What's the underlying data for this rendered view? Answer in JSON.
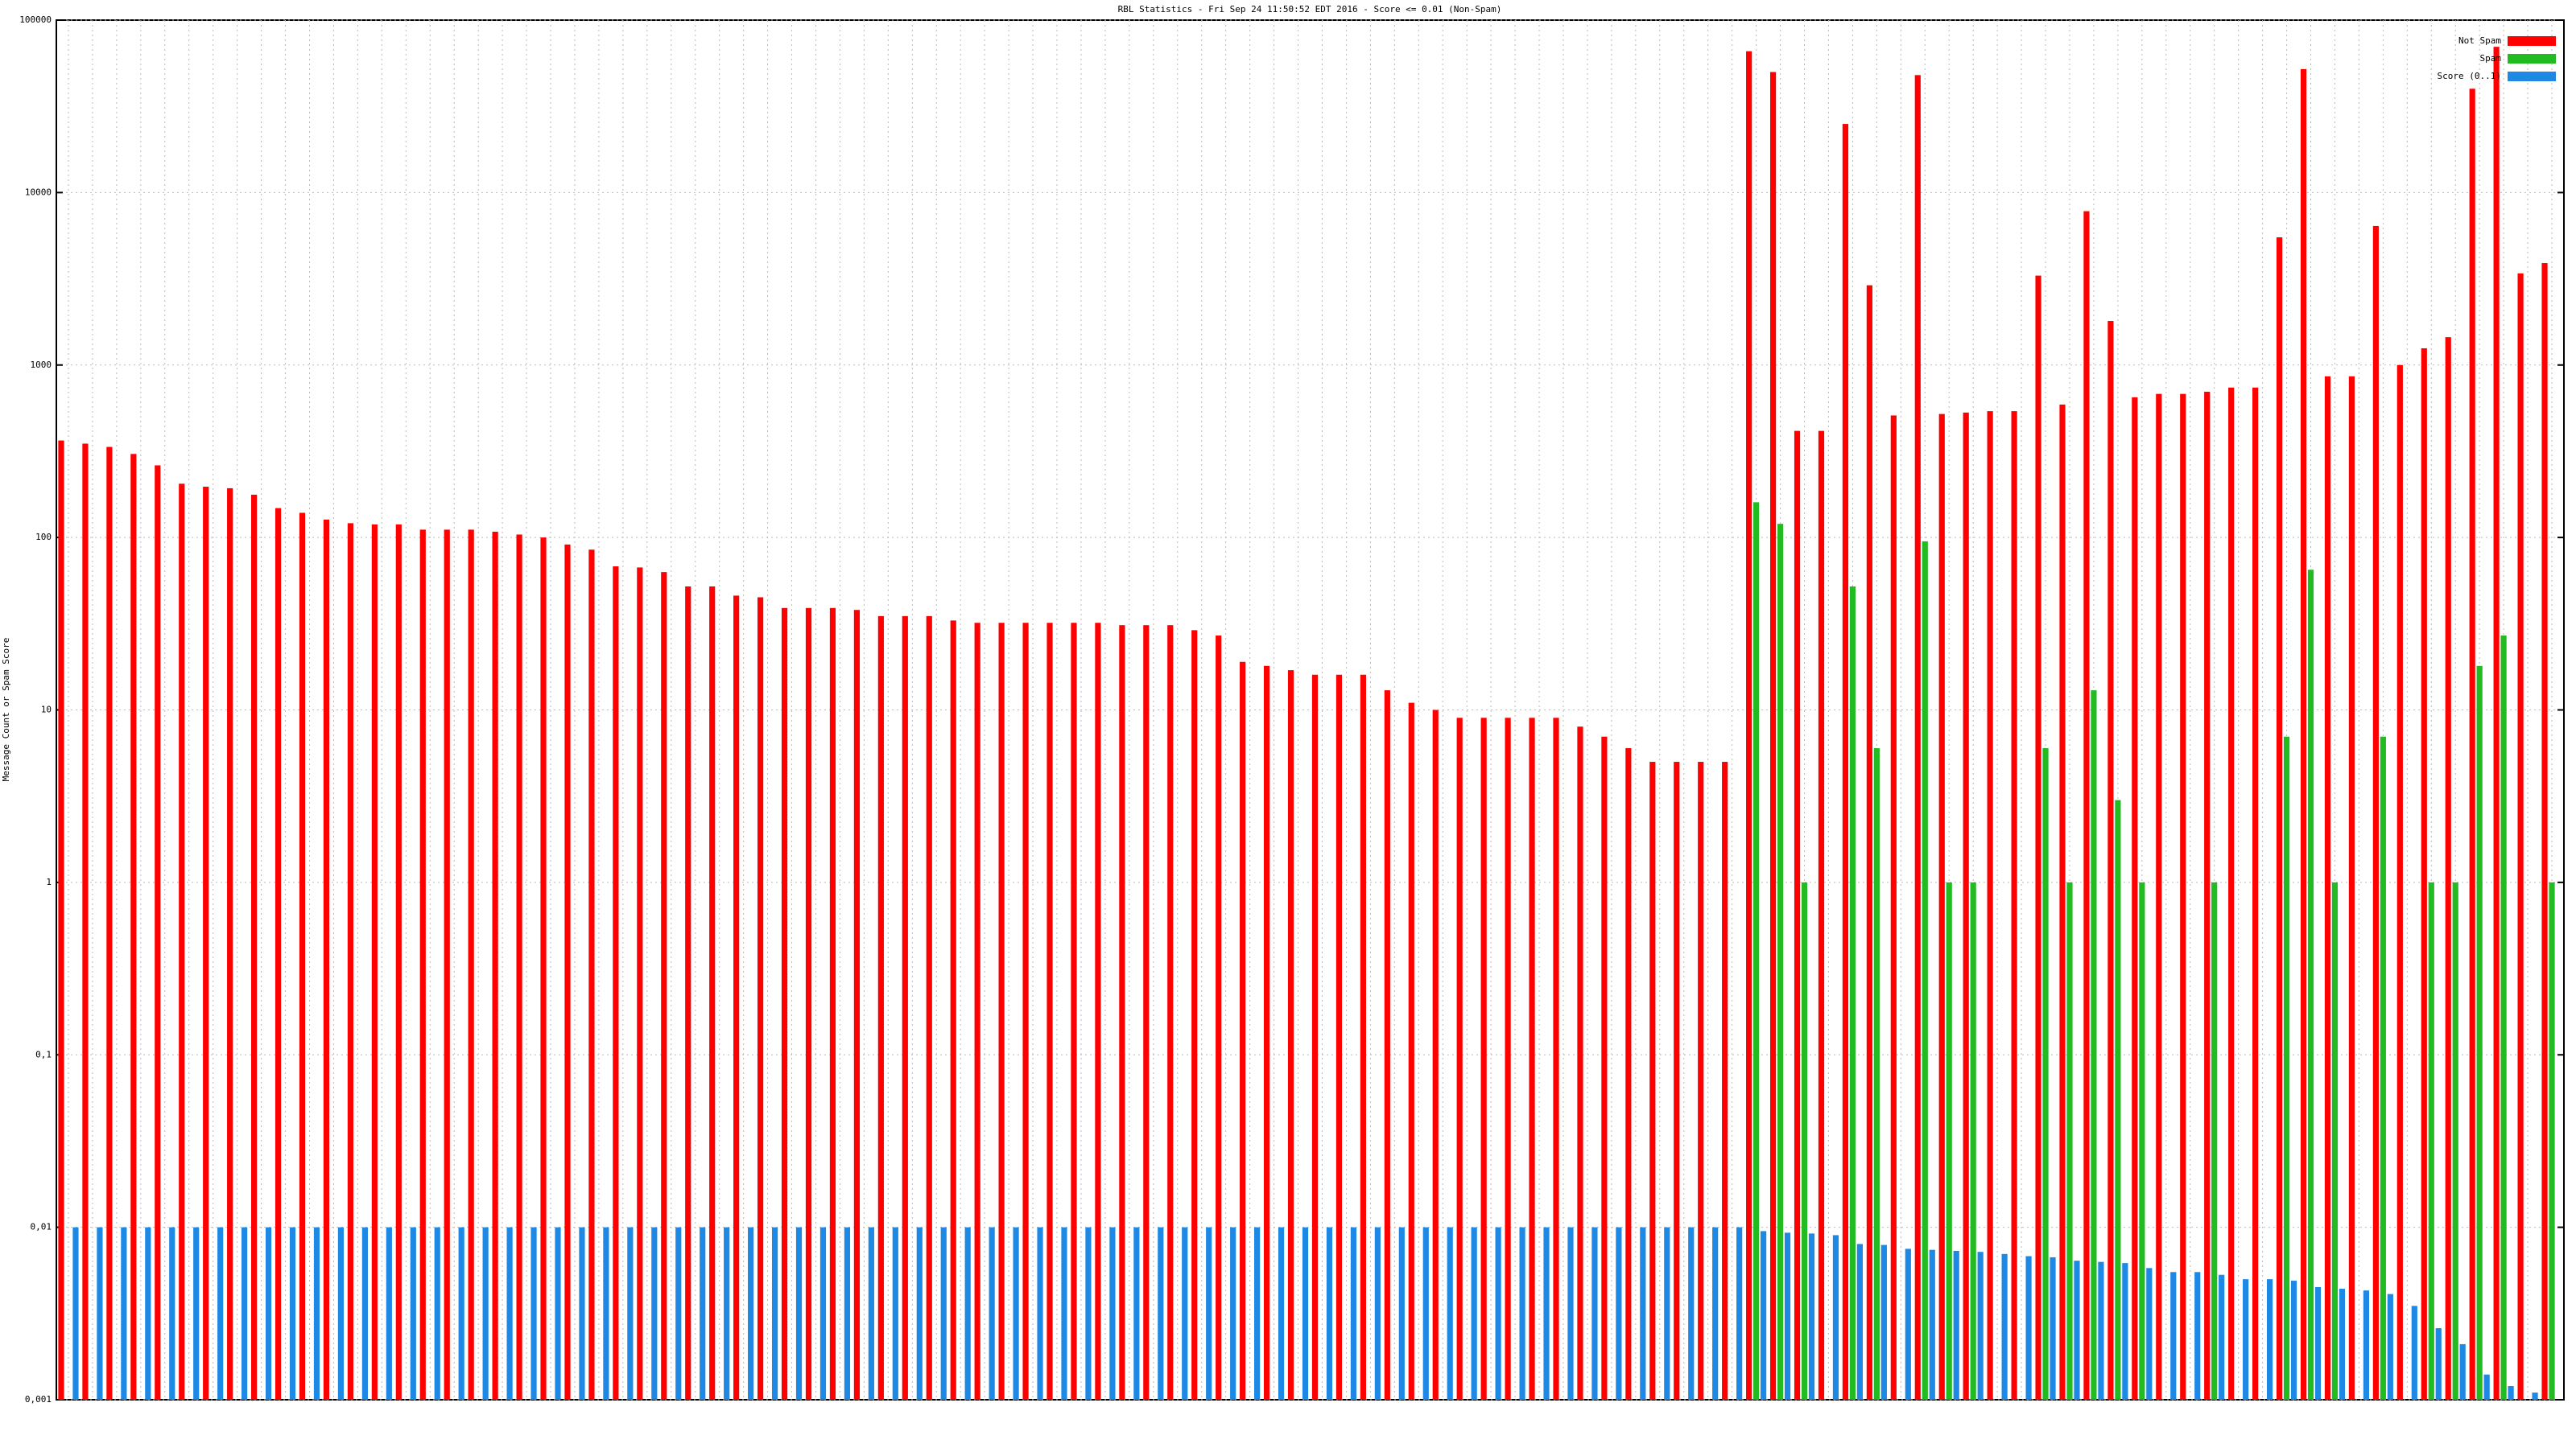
{
  "chart_data": {
    "type": "bar",
    "title": "RBL Statistics - Fri Sep 24 11:50:52 EDT 2016 - Score <= 0.01 (Non-Spam)",
    "y_label": "Message Count or Spam Score",
    "log_scale": true,
    "grid": true,
    "legend": "upper right",
    "ylim": [
      0.001,
      100000
    ],
    "yticks": [
      {
        "value": 0.001,
        "label": "0,001"
      },
      {
        "value": 0.01,
        "label": "0,01"
      },
      {
        "value": 0.1,
        "label": "0,1"
      },
      1,
      10,
      100,
      1000,
      10000,
      100000
    ],
    "categories": [
      null,
      null,
      null,
      null,
      null,
      null,
      null,
      null,
      null,
      null,
      null,
      null,
      null,
      null,
      null,
      null,
      null,
      null,
      null,
      null,
      null,
      null,
      null,
      null,
      null,
      null,
      null,
      null,
      null,
      null,
      null,
      null,
      null,
      null,
      null,
      null,
      null,
      null,
      null,
      null,
      null,
      null,
      null,
      null,
      null,
      null,
      null,
      null,
      null,
      null,
      null,
      null,
      null,
      null,
      null,
      null,
      null,
      null,
      null,
      null,
      null,
      null,
      null,
      null,
      null,
      null,
      null,
      null,
      null,
      null,
      null,
      null,
      null,
      null,
      null,
      null,
      null,
      null,
      null,
      null,
      null,
      null,
      null,
      null,
      null,
      null,
      null,
      null,
      null,
      null,
      null,
      null,
      null,
      null,
      null,
      null,
      null,
      null,
      null,
      null,
      null,
      null,
      null,
      null
    ],
    "series": [
      {
        "name": "Not Spam",
        "color": "#ff0000",
        "values": [
          365,
          350,
          335,
          305,
          262,
          205,
          197,
          193,
          177,
          148,
          139,
          127,
          121,
          119,
          119,
          111,
          111,
          111,
          108,
          104,
          100,
          91,
          85,
          68,
          67,
          63,
          52,
          52,
          46,
          45,
          39,
          39,
          39,
          38,
          35,
          35,
          35,
          33,
          32,
          32,
          32,
          32,
          32,
          32,
          31,
          31,
          31,
          29,
          27,
          19,
          18,
          17,
          16,
          16,
          16,
          13,
          11,
          10,
          9,
          9,
          9,
          9,
          9,
          8,
          7,
          6,
          5,
          5,
          5,
          5,
          66000,
          50000,
          415,
          415,
          25000,
          2900,
          510,
          48000,
          520,
          530,
          540,
          540,
          3300,
          590,
          7800,
          1800,
          650,
          680,
          680,
          700,
          740,
          740,
          5500,
          52000,
          860,
          860,
          6400,
          1000,
          1250,
          1450,
          40000,
          70000,
          3400,
          3900
        ]
      },
      {
        "name": "Spam",
        "color": "#22bb22",
        "values": [
          null,
          null,
          null,
          null,
          null,
          null,
          null,
          null,
          null,
          null,
          null,
          null,
          null,
          null,
          null,
          null,
          null,
          null,
          null,
          null,
          null,
          null,
          null,
          null,
          null,
          null,
          null,
          null,
          null,
          null,
          null,
          null,
          null,
          null,
          null,
          null,
          null,
          null,
          null,
          null,
          null,
          null,
          null,
          null,
          null,
          null,
          null,
          null,
          null,
          null,
          null,
          null,
          null,
          null,
          null,
          null,
          null,
          null,
          null,
          null,
          null,
          null,
          null,
          null,
          null,
          null,
          null,
          null,
          null,
          null,
          160,
          120,
          1,
          null,
          52,
          6,
          null,
          95,
          1,
          1,
          null,
          null,
          6,
          1,
          13,
          3,
          1,
          null,
          null,
          1,
          null,
          null,
          7,
          65,
          1,
          null,
          7,
          null,
          1,
          1,
          18,
          27,
          null,
          1
        ]
      },
      {
        "name": "Score (0..1)",
        "color": "#1e88e5",
        "values": [
          0.01,
          0.01,
          0.01,
          0.01,
          0.01,
          0.01,
          0.01,
          0.01,
          0.01,
          0.01,
          0.01,
          0.01,
          0.01,
          0.01,
          0.01,
          0.01,
          0.01,
          0.01,
          0.01,
          0.01,
          0.01,
          0.01,
          0.01,
          0.01,
          0.01,
          0.01,
          0.01,
          0.01,
          0.01,
          0.01,
          0.01,
          0.01,
          0.01,
          0.01,
          0.01,
          0.01,
          0.01,
          0.01,
          0.01,
          0.01,
          0.01,
          0.01,
          0.01,
          0.01,
          0.01,
          0.01,
          0.01,
          0.01,
          0.01,
          0.01,
          0.01,
          0.01,
          0.01,
          0.01,
          0.01,
          0.01,
          0.01,
          0.01,
          0.01,
          0.01,
          0.01,
          0.01,
          0.01,
          0.01,
          0.01,
          0.01,
          0.01,
          0.01,
          0.01,
          0.01,
          0.0095,
          0.0093,
          0.0092,
          0.009,
          0.008,
          0.0079,
          0.0075,
          0.0074,
          0.0073,
          0.0072,
          0.007,
          0.0068,
          0.0067,
          0.0064,
          0.0063,
          0.0062,
          0.0058,
          0.0055,
          0.0055,
          0.0053,
          0.005,
          0.005,
          0.0049,
          0.0045,
          0.0044,
          0.0043,
          0.0041,
          0.0035,
          0.0026,
          0.0021,
          0.0014,
          0.0012,
          0.0011,
          null
        ]
      }
    ]
  }
}
